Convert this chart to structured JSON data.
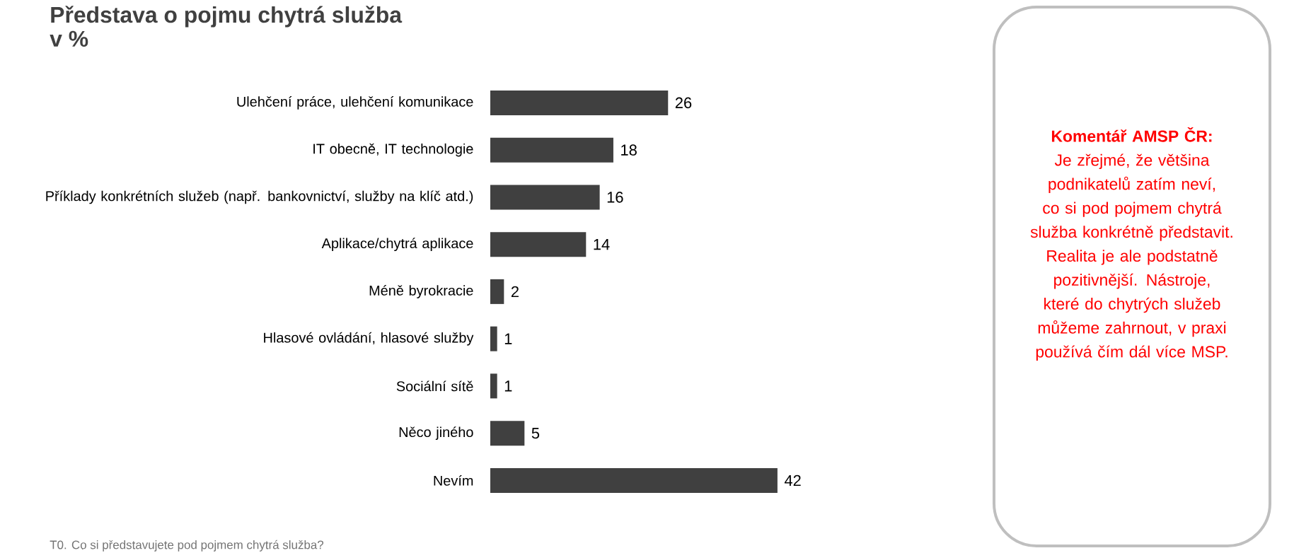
{
  "chart_data": [
    {
      "type": "bar",
      "orientation": "horizontal",
      "title": "Představa o pojmu chytrá služba",
      "subtitle": "v %",
      "categories": [
        "Ulehčení práce, ulehčení komunikace",
        "IT obecně, IT technologie",
        "Příklady konkrétních služeb (např. bankovnictví, služby na klíč atd.)",
        "Aplikace/chytrá aplikace",
        "Méně byrokracie",
        "Hlasové ovládání, hlasové služby",
        "Sociální sítě",
        "Něco jiného",
        "Nevím"
      ],
      "values": [
        26,
        18,
        16,
        14,
        2,
        1,
        1,
        5,
        42
      ],
      "color": "#404040",
      "data_labels": true,
      "annotations": [
        "T0. Co si představujete pod pojmem chytrá služba?"
      ]
    },
    {
      "type": "other",
      "title": "Komentář AMSP ČR:",
      "annotations": [
        "Je zřejmé, že většina podnikatelů zatím neví, co si pod pojmem chytrá služba konkrétně představit. Realita je ale podstatně pozitivnější. Nástroje, které do chytrých služeb můžeme zahrnout, v praxi používá čím dál více MSP."
      ]
    }
  ]
}
